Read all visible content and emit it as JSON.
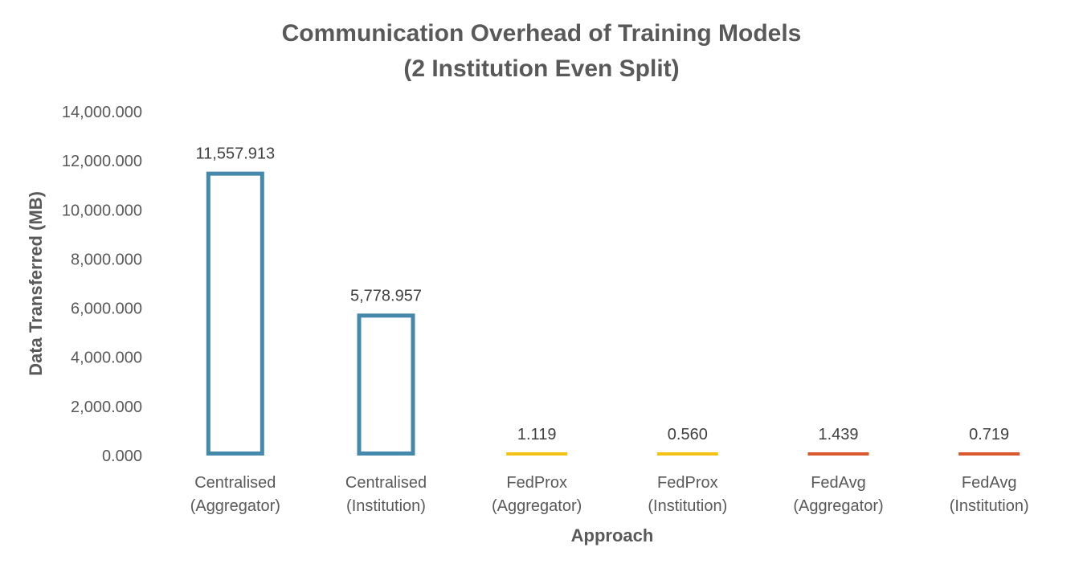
{
  "chart_data": {
    "type": "bar",
    "title": [
      "Communication Overhead of Training Models",
      "(2 Institution Even Split)"
    ],
    "xlabel": "Approach",
    "ylabel": "Data Transferred (MB)",
    "ylim": [
      0,
      14000
    ],
    "yticks": [
      "0.000",
      "2,000.000",
      "4,000.000",
      "6,000.000",
      "8,000.000",
      "10,000.000",
      "12,000.000",
      "14,000.000"
    ],
    "grid": false,
    "legend": "none",
    "categories": [
      [
        "Centralised",
        "(Aggregator)"
      ],
      [
        "Centralised",
        "(Institution)"
      ],
      [
        "FedProx",
        "(Aggregator)"
      ],
      [
        "FedProx",
        "(Institution)"
      ],
      [
        "FedAvg",
        "(Aggregator)"
      ],
      [
        "FedAvg",
        "(Institution)"
      ]
    ],
    "values": [
      11557.913,
      5778.957,
      1.119,
      0.56,
      1.439,
      0.719
    ],
    "data_labels": [
      "11,557.913",
      "5,778.957",
      "1.119",
      "0.560",
      "1.439",
      "0.719"
    ],
    "colors": [
      "#4488ac",
      "#4488ac",
      "#f2c314",
      "#f2c314",
      "#d9572c",
      "#d9572c"
    ],
    "bar_style": "outline"
  }
}
